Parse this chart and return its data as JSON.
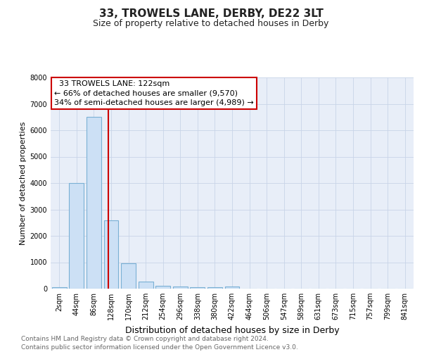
{
  "title": "33, TROWELS LANE, DERBY, DE22 3LT",
  "subtitle": "Size of property relative to detached houses in Derby",
  "xlabel": "Distribution of detached houses by size in Derby",
  "ylabel": "Number of detached properties",
  "footer_line1": "Contains HM Land Registry data © Crown copyright and database right 2024.",
  "footer_line2": "Contains public sector information licensed under the Open Government Licence v3.0.",
  "annotation_line1": "  33 TROWELS LANE: 122sqm  ",
  "annotation_line2": "← 66% of detached houses are smaller (9,570)",
  "annotation_line3": "34% of semi-detached houses are larger (4,989) →",
  "bin_labels": [
    "2sqm",
    "44sqm",
    "86sqm",
    "128sqm",
    "170sqm",
    "212sqm",
    "254sqm",
    "296sqm",
    "338sqm",
    "380sqm",
    "422sqm",
    "464sqm",
    "506sqm",
    "547sqm",
    "589sqm",
    "631sqm",
    "673sqm",
    "715sqm",
    "757sqm",
    "799sqm",
    "841sqm"
  ],
  "bin_values": [
    50,
    4000,
    6500,
    2600,
    950,
    280,
    100,
    70,
    50,
    50,
    70,
    0,
    0,
    0,
    0,
    0,
    0,
    0,
    0,
    0,
    0
  ],
  "bar_color": "#cce0f5",
  "bar_edge_color": "#7ab0d4",
  "red_line_color": "#cc0000",
  "annotation_box_color": "#cc0000",
  "fig_bg_color": "#ffffff",
  "plot_bg_color": "#e8eef8",
  "grid_color": "#c8d4e8",
  "ylim": [
    0,
    8000
  ],
  "yticks": [
    0,
    1000,
    2000,
    3000,
    4000,
    5000,
    6000,
    7000,
    8000
  ],
  "title_fontsize": 11,
  "subtitle_fontsize": 9,
  "ylabel_fontsize": 8,
  "xlabel_fontsize": 9,
  "tick_fontsize": 7,
  "footer_fontsize": 6.5,
  "ann_fontsize": 8
}
